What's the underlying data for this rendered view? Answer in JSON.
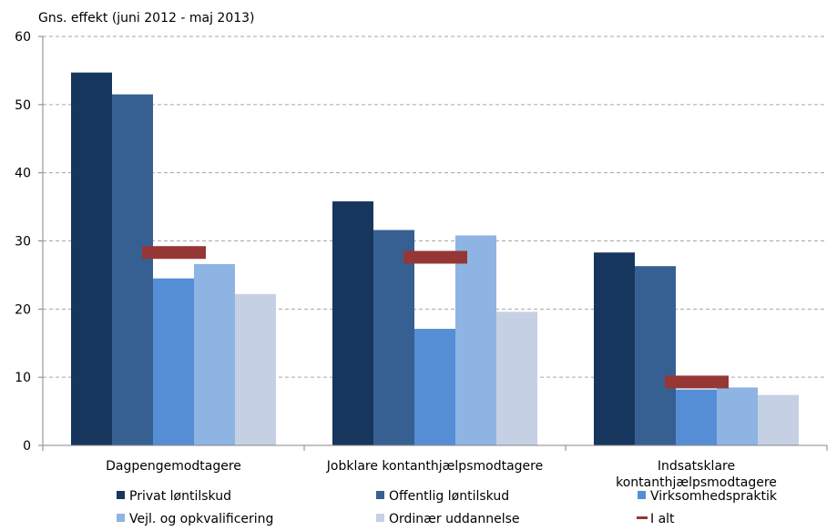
{
  "chart_data": {
    "type": "bar",
    "ylabel": "Gns. effekt (juni 2012 - maj 2013)",
    "ylim": [
      0,
      60
    ],
    "yticks": [
      0,
      10,
      20,
      30,
      40,
      50,
      60
    ],
    "grid": true,
    "legend_position": "bottom",
    "categories": [
      [
        "Dagpengemodtagere"
      ],
      [
        "Jobklare kontanthjælpsmodtagere"
      ],
      [
        "Indsatsklare",
        "kontanthjælpsmodtagere"
      ]
    ],
    "series": [
      {
        "name": "Privat løntilskud",
        "color": "#17365D",
        "values": [
          54.7,
          35.8,
          28.3
        ]
      },
      {
        "name": "Offentlig løntilskud",
        "color": "#376092",
        "values": [
          51.5,
          31.6,
          26.3
        ]
      },
      {
        "name": "Virksomhedspraktik",
        "color": "#558ED5",
        "values": [
          24.5,
          17.1,
          8.2
        ]
      },
      {
        "name": "Vejl. og opkvalificering",
        "color": "#8EB4E3",
        "values": [
          26.6,
          30.8,
          8.5
        ]
      },
      {
        "name": "Ordinær uddannelse",
        "color": "#C6D0E4",
        "values": [
          22.2,
          19.6,
          7.4
        ]
      }
    ],
    "total": {
      "name": "I alt",
      "color": "#953735",
      "values": [
        28.3,
        27.6,
        9.3
      ]
    }
  }
}
